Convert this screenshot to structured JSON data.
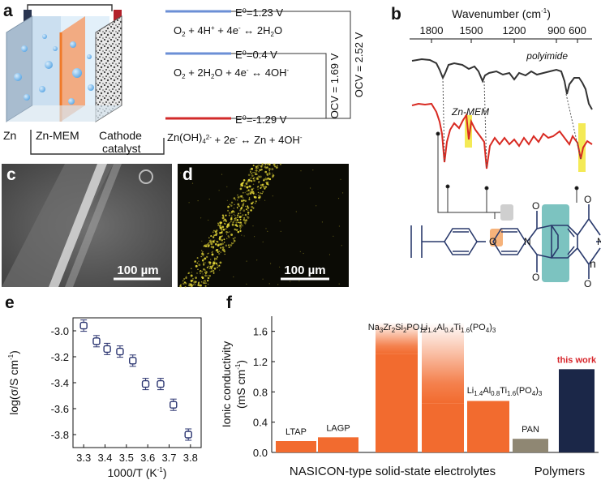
{
  "panel_a": {
    "label": "a",
    "components": {
      "zn": "Zn",
      "mem": "Zn-MEM",
      "cathode_1": "Cathode",
      "cathode_2": "catalyst"
    },
    "levels": [
      {
        "e0": "E⁰=1.23 V",
        "reaction": [
          "O",
          "2",
          " + 4H",
          "+",
          " + 4e",
          "-",
          " ↔ 2H",
          "2",
          "O"
        ]
      },
      {
        "e0": "E⁰=0.4 V",
        "reaction": [
          "O",
          "2",
          " + 2H",
          "2",
          "O + 4e",
          "-",
          " ↔ 4OH",
          "-",
          ""
        ]
      },
      {
        "e0": "E⁰=-1.29 V",
        "reaction": [
          "Zn(OH)",
          "4",
          "",
          "2-",
          " + 2e",
          "-",
          " ↔ Zn + 4OH",
          "-",
          ""
        ]
      }
    ],
    "ocv_inner": "OCV = 1.69 V",
    "ocv_outer": "OCV = 2.52 V",
    "colors": {
      "blue": "#6b8fd6",
      "red": "#d22a2a"
    }
  },
  "panel_b": {
    "label": "b",
    "axis_title": "Wavenumber (cm",
    "axis_title_sup": "-1",
    "axis_title_end": ")",
    "ticks": [
      "1800",
      "1500",
      "1200",
      "900",
      "600"
    ],
    "trace_polyimide": "polyimide",
    "trace_mem": "Zn-MEM",
    "n_label": "n",
    "colors": {
      "polyimide": "#333333",
      "mem": "#d82a22",
      "highlight": "#f4ea56",
      "orange": "#f6b27a",
      "teal": "#7cc3c0",
      "gray": "#cfcfcf"
    }
  },
  "panel_c": {
    "label": "c",
    "scale": "100 µm"
  },
  "panel_d": {
    "label": "d",
    "scale": "100 µm"
  },
  "panel_e": {
    "label": "e",
    "xlabel": "1000/T (K",
    "xlabel_sup": "-1",
    "xlabel_end": ")",
    "ylabel": "log(σ/S cm",
    "ylabel_sup": "-1",
    "ylabel_end": ")",
    "chart_data": {
      "type": "scatter",
      "x": [
        3.3,
        3.36,
        3.41,
        3.47,
        3.53,
        3.59,
        3.66,
        3.72,
        3.79
      ],
      "y": [
        -2.96,
        -3.08,
        -3.14,
        -3.16,
        -3.23,
        -3.41,
        -3.41,
        -3.57,
        -3.8
      ],
      "xlim": [
        3.25,
        3.85
      ],
      "ylim": [
        -3.9,
        -2.9
      ],
      "x_ticks": [
        "3.3",
        "3.4",
        "3.5",
        "3.6",
        "3.7",
        "3.8"
      ],
      "y_ticks": [
        "-3.0",
        "-3.2",
        "-3.4",
        "-3.6",
        "-3.8"
      ],
      "marker_color": "#2a3470"
    }
  },
  "panel_f": {
    "label": "f",
    "ylabel_1": "Ionic conductivity",
    "ylabel_2": "(mS cm",
    "ylabel_sup": "-1",
    "ylabel_end": ")",
    "group_nasicon": "NASICON-type solid-state electrolytes",
    "group_polymers": "Polymers",
    "formula_nzsp": [
      "Na",
      "3",
      "Zr",
      "2",
      "Si",
      "2",
      "PO",
      "12",
      ""
    ],
    "formula_latp": [
      "Li",
      "1.4",
      "Al",
      "0.4",
      "Ti",
      "1.6",
      "(PO",
      "4",
      ")",
      "3",
      ""
    ],
    "formula_latp2": [
      "Li",
      "1.4",
      "Al",
      "0.8",
      "Ti",
      "1.6",
      "(PO",
      "4",
      ")",
      "3",
      ""
    ],
    "chart_data": {
      "type": "bar",
      "categories": [
        "LTAP",
        "LAGP",
        "Na3Zr2Si2PO12",
        "Li1.4Al0.4Ti1.6(PO4)3",
        "Li1.4Al0.8Ti1.6(PO4)3",
        "PAN",
        "this work"
      ],
      "values": [
        0.15,
        0.2,
        1.3,
        0.65,
        0.68,
        0.18,
        1.1
      ],
      "range_max": [
        null,
        null,
        1.72,
        1.72,
        null,
        null,
        null
      ],
      "labels": [
        "LTAP",
        "LAGP",
        "",
        "",
        "",
        "PAN",
        "this work"
      ],
      "ylim": [
        0,
        1.8
      ],
      "y_ticks": [
        "0.0",
        "0.4",
        "0.8",
        "1.2",
        "1.6"
      ],
      "colors": {
        "nasicon": "#f26b2f",
        "pan": "#8f8773",
        "this_work": "#1b2748",
        "this_work_label": "#d7262b"
      }
    }
  }
}
